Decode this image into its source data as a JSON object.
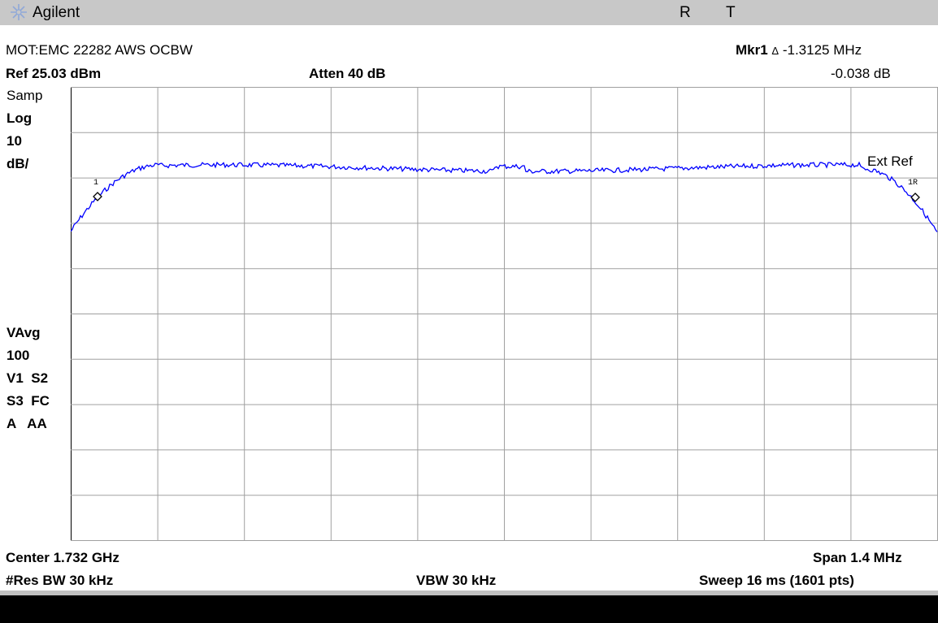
{
  "titlebar": {
    "brand": "Agilent",
    "status_r": "R",
    "status_t": "T",
    "logo_icon": "agilent-spark-icon"
  },
  "header": {
    "title": "MOT:EMC 22282 AWS OCBW",
    "marker_label": "Mkr1",
    "marker_delta_symbol": "Δ",
    "marker_freq": "-1.3125 MHz",
    "marker_level": "-0.038 dB",
    "ref_level": "Ref 25.03 dBm",
    "atten": "Atten 40 dB"
  },
  "left_panel": {
    "det": "Samp",
    "scale_type": "Log",
    "scale_value": "10",
    "scale_unit": "dB/",
    "avg_label": "VAvg",
    "avg_count": "100",
    "row1": "V1  S2",
    "row2": "S3  FC",
    "row3": "A   AA"
  },
  "plot": {
    "ext_ref": "Ext Ref",
    "marker1_label": "1",
    "marker1r_label": "1R",
    "grid_color": "#a0a0a0",
    "trace_color": "#0000ff"
  },
  "footer": {
    "center": "Center 1.732 GHz",
    "span": "Span 1.4 MHz",
    "res_bw": "#Res BW 30 kHz",
    "vbw": "VBW 30 kHz",
    "sweep": "Sweep 16 ms (1601 pts)"
  }
}
